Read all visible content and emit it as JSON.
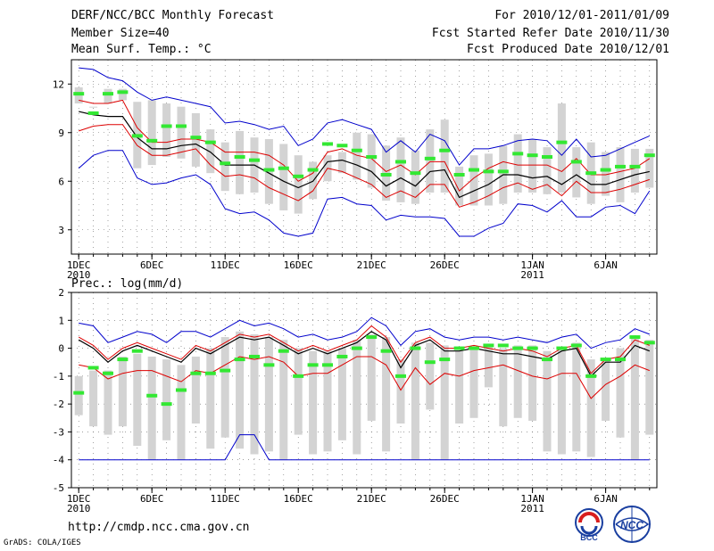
{
  "header": {
    "title": "DERF/NCC/BCC Monthly Forecast",
    "member_size": "Member Size=40",
    "variable": "Mean Surf. Temp.: °C",
    "period": "For 2010/12/01-2011/01/09",
    "fcst_started": "Fcst Started Refer Date 2010/11/30",
    "fcst_produced": "Fcst Produced Date 2010/12/01"
  },
  "footer": {
    "url": "http://cmdp.ncc.cma.gov.cn",
    "credit": "GrADS: COLA/IGES",
    "logo_bcc": "BCC",
    "logo_ncc": "NCC"
  },
  "colors": {
    "bar": "#d3d3d3",
    "green": "#33e833",
    "blue": "#0000cc",
    "red": "#dd0000",
    "black": "#000000"
  },
  "chart_data": [
    {
      "type": "line",
      "title": "Mean Surf. Temp.: °C",
      "ylim": [
        1.5,
        13.5
      ],
      "yticks": [
        3,
        6,
        9,
        12
      ],
      "xlim": [
        0.5,
        40.5
      ],
      "xtick_days": [
        1,
        6,
        11,
        16,
        21,
        26,
        32,
        37
      ],
      "xtick_labels": [
        "1DEC",
        "6DEC",
        "11DEC",
        "16DEC",
        "21DEC",
        "26DEC",
        "1JAN",
        "6JAN"
      ],
      "xtick_years": {
        "1": "2010",
        "32": "2011"
      },
      "days": [
        1,
        2,
        3,
        4,
        5,
        6,
        7,
        8,
        9,
        10,
        11,
        12,
        13,
        14,
        15,
        16,
        17,
        18,
        19,
        20,
        21,
        22,
        23,
        24,
        25,
        26,
        27,
        28,
        29,
        30,
        31,
        32,
        33,
        34,
        35,
        36,
        37,
        38,
        39,
        40
      ],
      "series": [
        {
          "name": "max",
          "color": "blue",
          "values": [
            13.0,
            12.9,
            12.4,
            12.2,
            11.5,
            11.0,
            11.2,
            11.0,
            10.8,
            10.6,
            9.6,
            9.7,
            9.5,
            9.2,
            9.4,
            8.2,
            8.6,
            9.6,
            9.8,
            9.5,
            9.2,
            7.8,
            8.5,
            7.8,
            8.9,
            8.5,
            7.0,
            8.0,
            8.0,
            8.2,
            8.5,
            8.6,
            8.5,
            7.6,
            8.6,
            7.5,
            7.6,
            8.0,
            8.4,
            8.8
          ]
        },
        {
          "name": "upper",
          "color": "red",
          "values": [
            11.0,
            10.8,
            10.8,
            11.0,
            9.3,
            8.4,
            8.4,
            8.6,
            8.6,
            8.4,
            7.8,
            7.8,
            7.8,
            7.6,
            7.0,
            6.0,
            6.5,
            7.8,
            8.0,
            7.6,
            7.4,
            6.6,
            7.0,
            6.4,
            7.2,
            7.2,
            5.4,
            6.2,
            6.8,
            7.2,
            7.0,
            7.0,
            7.0,
            6.6,
            7.4,
            6.4,
            6.4,
            6.6,
            6.8,
            7.4
          ]
        },
        {
          "name": "mean",
          "color": "black",
          "values": [
            10.3,
            10.1,
            10.0,
            10.0,
            8.7,
            8.0,
            8.0,
            8.2,
            8.3,
            7.8,
            7.0,
            7.0,
            7.0,
            6.5,
            6.0,
            5.6,
            6.0,
            7.2,
            7.3,
            7.0,
            6.6,
            5.7,
            6.2,
            5.7,
            6.6,
            6.7,
            5.0,
            5.4,
            5.8,
            6.4,
            6.4,
            6.2,
            6.3,
            5.8,
            6.4,
            5.8,
            5.8,
            6.1,
            6.4,
            6.6
          ]
        },
        {
          "name": "lower",
          "color": "red",
          "values": [
            9.1,
            9.4,
            9.5,
            9.5,
            8.2,
            7.6,
            7.6,
            7.8,
            8.0,
            7.0,
            6.3,
            6.4,
            6.2,
            5.6,
            5.2,
            4.8,
            5.4,
            6.8,
            6.6,
            6.2,
            5.8,
            5.0,
            5.4,
            5.0,
            5.8,
            5.8,
            4.4,
            4.7,
            5.1,
            5.6,
            5.9,
            5.5,
            5.8,
            5.1,
            6.0,
            5.3,
            5.3,
            5.5,
            5.8,
            6.1
          ]
        },
        {
          "name": "min",
          "color": "blue",
          "values": [
            6.8,
            7.6,
            7.9,
            7.9,
            6.2,
            5.8,
            5.9,
            6.2,
            6.4,
            5.8,
            4.3,
            4.0,
            4.1,
            3.6,
            2.8,
            2.6,
            2.8,
            4.9,
            5.0,
            4.6,
            4.5,
            3.6,
            3.9,
            3.8,
            3.8,
            3.7,
            2.6,
            2.6,
            3.1,
            3.4,
            4.6,
            4.5,
            4.1,
            4.8,
            3.8,
            3.8,
            4.4,
            4.5,
            4.0,
            5.4
          ]
        }
      ],
      "box_low": [
        10.8,
        10.6,
        10.8,
        11.0,
        6.8,
        7.0,
        7.5,
        7.4,
        6.9,
        6.5,
        5.4,
        5.2,
        5.3,
        4.6,
        4.2,
        4.0,
        4.9,
        6.0,
        6.5,
        6.1,
        5.6,
        4.8,
        4.7,
        4.6,
        5.3,
        5.3,
        4.5,
        4.5,
        4.5,
        4.6,
        5.3,
        5.3,
        5.2,
        5.3,
        5.0,
        4.6,
        5.1,
        4.7,
        5.3,
        5.6
      ],
      "box_high": [
        11.8,
        10.6,
        11.7,
        11.7,
        10.9,
        11.0,
        10.8,
        10.6,
        10.2,
        9.2,
        8.4,
        9.1,
        8.7,
        8.6,
        8.3,
        7.6,
        7.2,
        7.6,
        7.8,
        9.0,
        8.9,
        8.2,
        8.7,
        7.9,
        9.2,
        9.8,
        6.9,
        7.6,
        7.7,
        8.2,
        8.9,
        8.6,
        8.1,
        10.8,
        8.1,
        8.4,
        7.8,
        8.1,
        8.0,
        8.0
      ],
      "green_marks": [
        11.4,
        10.2,
        11.4,
        11.5,
        8.8,
        8.5,
        9.4,
        9.4,
        8.7,
        8.4,
        7.1,
        7.5,
        7.3,
        6.7,
        6.8,
        6.3,
        6.7,
        8.3,
        8.2,
        7.9,
        7.5,
        6.4,
        7.2,
        6.5,
        7.4,
        7.9,
        6.4,
        6.7,
        6.6,
        6.6,
        7.7,
        7.6,
        7.5,
        8.4,
        7.2,
        6.5,
        6.7,
        6.9,
        6.9,
        7.6
      ]
    },
    {
      "type": "line",
      "title": "Prec.: log(mm/d)",
      "ylim": [
        -5,
        2
      ],
      "yticks": [
        -5,
        -4,
        -3,
        -2,
        -1,
        0,
        1,
        2
      ],
      "xlim": [
        0.5,
        40.5
      ],
      "xtick_days": [
        1,
        6,
        11,
        16,
        21,
        26,
        32,
        37
      ],
      "xtick_labels": [
        "1DEC",
        "6DEC",
        "11DEC",
        "16DEC",
        "21DEC",
        "26DEC",
        "1JAN",
        "6JAN"
      ],
      "xtick_years": {
        "1": "2010",
        "32": "2011"
      },
      "days": [
        1,
        2,
        3,
        4,
        5,
        6,
        7,
        8,
        9,
        10,
        11,
        12,
        13,
        14,
        15,
        16,
        17,
        18,
        19,
        20,
        21,
        22,
        23,
        24,
        25,
        26,
        27,
        28,
        29,
        30,
        31,
        32,
        33,
        34,
        35,
        36,
        37,
        38,
        39,
        40
      ],
      "series": [
        {
          "name": "max",
          "color": "blue",
          "values": [
            0.9,
            0.8,
            0.2,
            0.4,
            0.6,
            0.5,
            0.2,
            0.6,
            0.6,
            0.4,
            0.7,
            1.0,
            0.8,
            0.9,
            0.7,
            0.4,
            0.5,
            0.3,
            0.4,
            0.6,
            1.1,
            0.8,
            0.1,
            0.6,
            0.7,
            0.4,
            0.3,
            0.4,
            0.4,
            0.3,
            0.4,
            0.3,
            0.2,
            0.4,
            0.5,
            0.0,
            0.2,
            0.3,
            0.7,
            0.5
          ]
        },
        {
          "name": "upper",
          "color": "red",
          "values": [
            0.4,
            0.1,
            -0.4,
            0.0,
            0.2,
            0.0,
            -0.2,
            -0.4,
            0.1,
            -0.1,
            0.2,
            0.5,
            0.4,
            0.5,
            0.2,
            -0.1,
            0.1,
            -0.1,
            0.1,
            0.3,
            0.8,
            0.4,
            -0.5,
            0.2,
            0.4,
            0.0,
            0.0,
            0.1,
            0.0,
            -0.1,
            0.0,
            -0.1,
            -0.3,
            0.0,
            0.1,
            -0.9,
            -0.4,
            -0.3,
            0.3,
            0.1
          ]
        },
        {
          "name": "mean",
          "color": "black",
          "values": [
            0.3,
            0.0,
            -0.5,
            -0.1,
            0.1,
            -0.1,
            -0.3,
            -0.5,
            0.0,
            -0.2,
            0.1,
            0.4,
            0.3,
            0.4,
            0.1,
            -0.2,
            0.0,
            -0.2,
            0.0,
            0.2,
            0.6,
            0.3,
            -0.7,
            0.1,
            0.3,
            -0.1,
            -0.1,
            0.0,
            -0.1,
            -0.2,
            -0.2,
            -0.3,
            -0.4,
            -0.1,
            0.0,
            -1.0,
            -0.5,
            -0.5,
            0.1,
            -0.1
          ]
        },
        {
          "name": "lower",
          "color": "red",
          "values": [
            -0.6,
            -0.7,
            -1.1,
            -0.9,
            -0.8,
            -0.8,
            -1.0,
            -1.2,
            -0.8,
            -0.9,
            -0.6,
            -0.3,
            -0.4,
            -0.3,
            -0.5,
            -1.0,
            -0.9,
            -0.9,
            -0.6,
            -0.3,
            -0.3,
            -0.6,
            -1.5,
            -0.7,
            -1.3,
            -0.9,
            -1.0,
            -0.8,
            -0.7,
            -0.6,
            -0.8,
            -1.0,
            -1.1,
            -0.9,
            -0.9,
            -1.8,
            -1.3,
            -1.0,
            -0.6,
            -0.8
          ]
        },
        {
          "name": "min",
          "color": "blue",
          "values": [
            -4.0,
            -4.0,
            -4.0,
            -4.0,
            -4.0,
            -4.0,
            -4.0,
            -4.0,
            -4.0,
            -4.0,
            -4.0,
            -3.1,
            -3.1,
            -4.0,
            -4.0,
            -4.0,
            -4.0,
            -4.0,
            -4.0,
            -4.0,
            -4.0,
            -4.0,
            -4.0,
            -4.0,
            -4.0,
            -4.0,
            -4.0,
            -4.0,
            -4.0,
            -4.0,
            -4.0,
            -4.0,
            -4.0,
            -4.0,
            -4.0,
            -4.0,
            -4.0,
            -4.0,
            -4.0,
            -4.0
          ]
        }
      ],
      "box_low": [
        -2.4,
        -2.8,
        -3.1,
        -2.8,
        -3.5,
        -4.0,
        -3.3,
        -4.0,
        -2.7,
        -3.6,
        -3.2,
        -3.6,
        -3.8,
        -3.7,
        -4.0,
        -3.1,
        -3.8,
        -3.7,
        -3.3,
        -3.8,
        -2.6,
        -3.7,
        -2.7,
        -4.0,
        -2.2,
        -4.0,
        -2.7,
        -2.5,
        -1.4,
        -2.8,
        -2.5,
        -2.6,
        -3.7,
        -3.8,
        -3.7,
        -3.9,
        -2.6,
        -3.2,
        -4.0,
        -3.1
      ],
      "box_high": [
        -1.0,
        -0.8,
        -0.8,
        -0.3,
        -0.2,
        -0.3,
        -0.4,
        -0.6,
        -0.3,
        0.0,
        0.4,
        0.6,
        0.5,
        0.4,
        0.3,
        0.0,
        -0.1,
        -0.1,
        0.0,
        0.3,
        0.5,
        0.4,
        -0.4,
        0.2,
        0.2,
        0.1,
        -0.1,
        0.0,
        0.1,
        0.0,
        0.1,
        0.1,
        -0.1,
        0.0,
        0.2,
        -0.4,
        -0.4,
        0.0,
        0.4,
        0.3
      ],
      "green_marks": [
        -1.6,
        -0.7,
        -0.9,
        -0.4,
        -0.1,
        -1.7,
        -2.0,
        -1.5,
        -0.9,
        -0.9,
        -0.8,
        -0.4,
        -0.3,
        -0.6,
        -0.1,
        -1.0,
        -0.6,
        -0.6,
        -0.3,
        0.0,
        0.4,
        -0.1,
        -1.0,
        0.0,
        -0.5,
        -0.4,
        0.0,
        0.0,
        0.1,
        0.1,
        0.0,
        0.0,
        -0.4,
        0.0,
        0.1,
        -1.0,
        -0.4,
        -0.4,
        0.4,
        0.2
      ]
    }
  ]
}
